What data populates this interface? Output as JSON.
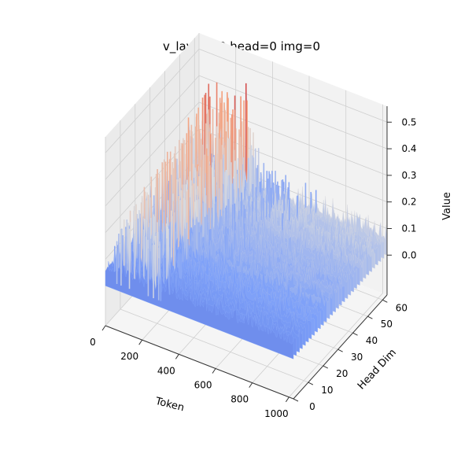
{
  "chart_data": {
    "type": "surface",
    "title": "v_layer_22 head=0 img=0",
    "xlabel": "Token",
    "ylabel": "Head Dim",
    "zlabel": "Value",
    "xlim": [
      0,
      1024
    ],
    "ylim": [
      0,
      63
    ],
    "zlim": [
      0,
      0.5
    ],
    "xticks": [
      "0",
      "200",
      "400",
      "600",
      "800",
      "1000"
    ],
    "yticks": [
      "0",
      "10",
      "20",
      "30",
      "40",
      "50",
      "60"
    ],
    "zticks": [
      "0.0",
      "0.1",
      "0.2",
      "0.3",
      "0.4",
      "0.5"
    ],
    "colormap": "coolwarm",
    "grid": true,
    "surface_profile": {
      "description_values": "approximate value along token axis (max over head dim)",
      "tokens": [
        0,
        50,
        100,
        150,
        200,
        250,
        300,
        350,
        400,
        450,
        500,
        600,
        700,
        800,
        900,
        1024
      ],
      "peak_values": [
        0.12,
        0.35,
        0.48,
        0.4,
        0.3,
        0.5,
        0.28,
        0.2,
        0.18,
        0.2,
        0.17,
        0.16,
        0.15,
        0.15,
        0.14,
        0.13
      ],
      "baseline_value": 0.07
    }
  }
}
